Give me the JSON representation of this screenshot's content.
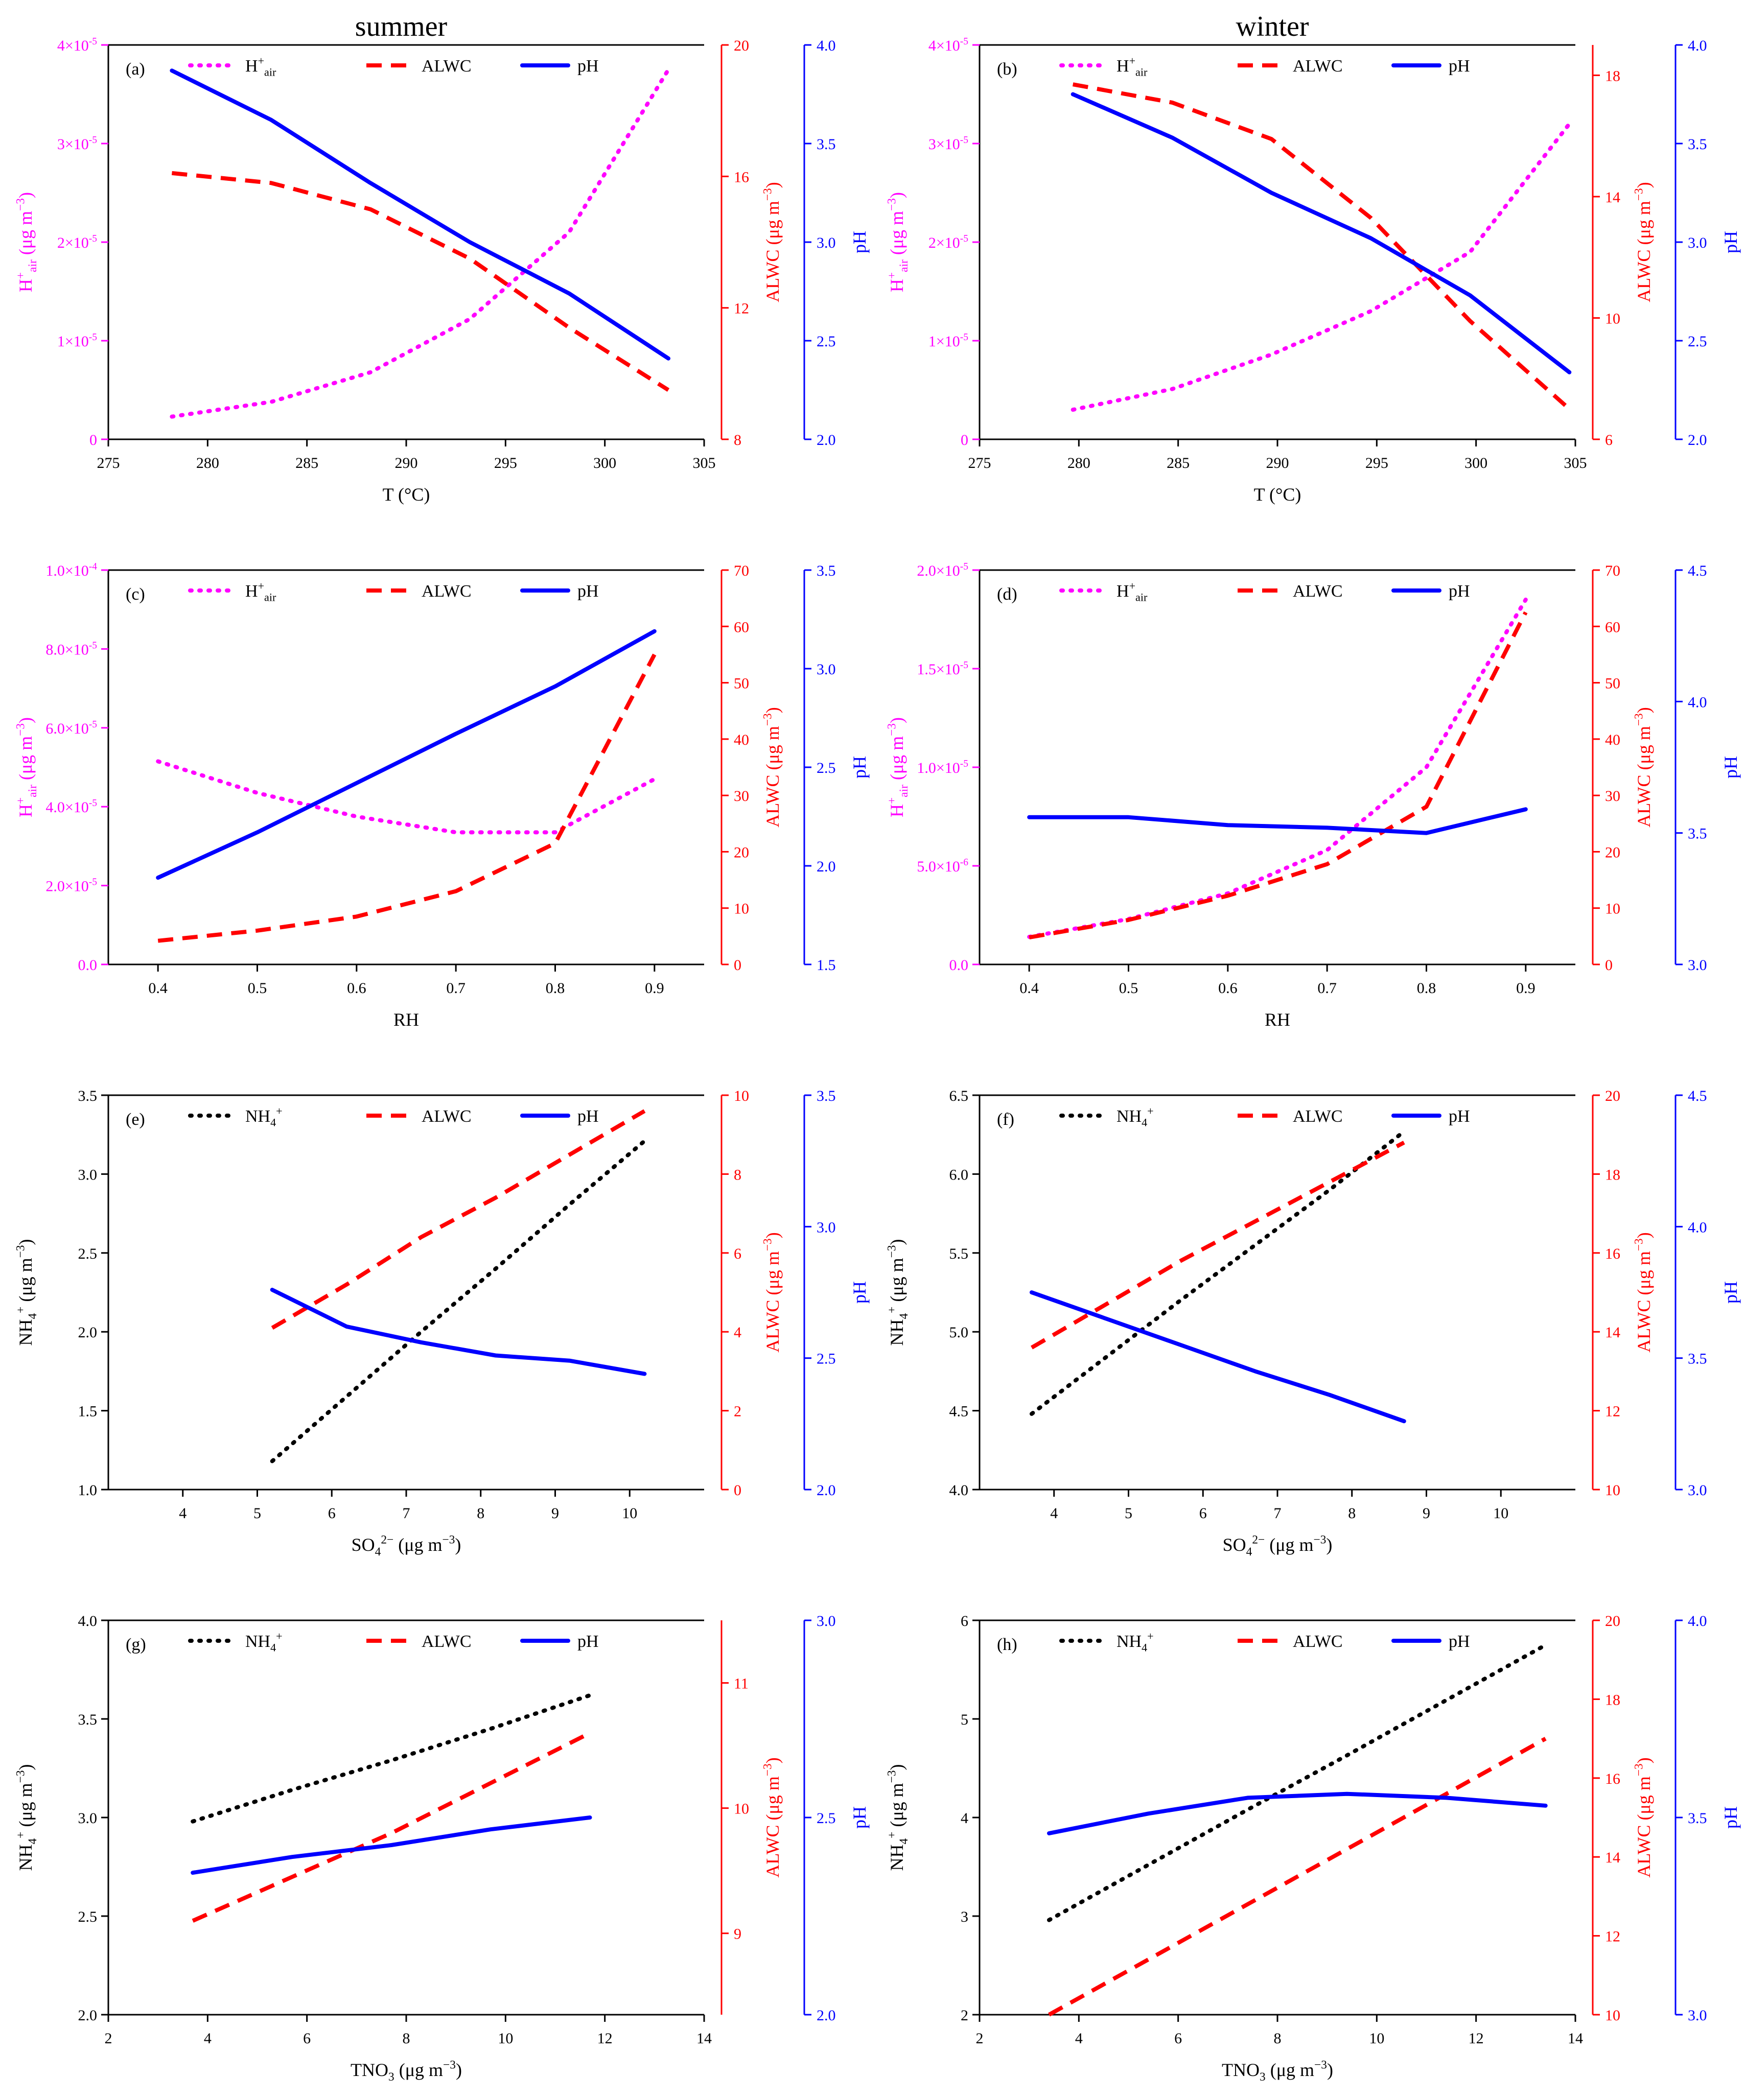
{
  "headers": {
    "left": "summer",
    "right": "winter"
  },
  "colors": {
    "h": "#ff00ff",
    "alwc": "#ff0000",
    "ph": "#0000ff",
    "nh4": "#000000",
    "axis": "#000000"
  },
  "chart_data": [
    {
      "type": "line",
      "panel_label": "(a)",
      "xlabel": "T (°C)",
      "xlim": [
        275,
        305
      ],
      "xticks": [
        275,
        280,
        285,
        290,
        295,
        300,
        305
      ],
      "left_axis": {
        "label": "H+air (μg m-3)",
        "lim": [
          0,
          4e-05
        ],
        "ticks": [
          "0",
          "1x10-5",
          "2x10-5",
          "3x10-5",
          "4x10-5"
        ]
      },
      "alwc_axis": {
        "label": "ALWC (μg m-3)",
        "lim": [
          8,
          20
        ],
        "ticks": [
          "8",
          "12",
          "16",
          "20"
        ]
      },
      "ph_axis": {
        "label": "pH",
        "lim": [
          2.0,
          4.0
        ],
        "ticks": [
          "2.0",
          "2.5",
          "3.0",
          "3.5",
          "4.0"
        ]
      },
      "legend": [
        "H+air",
        "ALWC",
        "pH"
      ],
      "series": [
        {
          "name": "H+air",
          "axis": "left",
          "style": "dotted",
          "x": [
            278.2,
            283.2,
            288.2,
            293.2,
            298.2,
            303.2
          ],
          "values": [
            2.3e-06,
            3.8e-06,
            6.8e-06,
            1.22e-05,
            2.1e-05,
            3.75e-05
          ]
        },
        {
          "name": "ALWC",
          "axis": "alwc",
          "style": "dashed",
          "x": [
            278.2,
            283.2,
            288.2,
            293.2,
            298.2,
            303.2
          ],
          "values": [
            16.1,
            15.8,
            15.0,
            13.5,
            11.4,
            9.5
          ]
        },
        {
          "name": "pH",
          "axis": "ph",
          "style": "solid",
          "x": [
            278.2,
            283.2,
            288.2,
            293.2,
            298.2,
            303.2
          ],
          "values": [
            3.87,
            3.62,
            3.3,
            3.0,
            2.74,
            2.41
          ]
        }
      ]
    },
    {
      "type": "line",
      "panel_label": "(b)",
      "xlabel": "T (°C)",
      "xlim": [
        275,
        305
      ],
      "xticks": [
        275,
        280,
        285,
        290,
        295,
        300,
        305
      ],
      "left_axis": {
        "label": "H+air (μg m-3)",
        "lim": [
          0,
          4e-05
        ],
        "ticks": [
          "0",
          "1x10-5",
          "2x10-5",
          "3x10-5",
          "4x10-5"
        ]
      },
      "alwc_axis": {
        "label": "ALWC (μg m-3)",
        "lim": [
          6,
          19
        ],
        "ticks": [
          "6",
          "10",
          "14",
          "18"
        ]
      },
      "ph_axis": {
        "label": "pH",
        "lim": [
          2.0,
          4.0
        ],
        "ticks": [
          "2.0",
          "2.5",
          "3.0",
          "3.5",
          "4.0"
        ]
      },
      "legend": [
        "H+air",
        "ALWC",
        "pH"
      ],
      "series": [
        {
          "name": "H+air",
          "axis": "left",
          "style": "dotted",
          "x": [
            279.7,
            284.7,
            289.7,
            294.7,
            299.7,
            304.7
          ],
          "values": [
            3e-06,
            5.1e-06,
            8.6e-06,
            1.3e-05,
            1.9e-05,
            3.2e-05
          ]
        },
        {
          "name": "ALWC",
          "axis": "alwc",
          "style": "dashed",
          "x": [
            279.7,
            284.7,
            289.7,
            294.7,
            299.7,
            304.7
          ],
          "values": [
            17.7,
            17.1,
            15.9,
            13.3,
            9.9,
            7.0
          ]
        },
        {
          "name": "pH",
          "axis": "ph",
          "style": "solid",
          "x": [
            279.7,
            284.7,
            289.7,
            294.7,
            299.7,
            304.7
          ],
          "values": [
            3.75,
            3.53,
            3.25,
            3.02,
            2.73,
            2.34
          ]
        }
      ]
    },
    {
      "type": "line",
      "panel_label": "(c)",
      "xlabel": "RH",
      "xlim": [
        0.35,
        0.95
      ],
      "xticks": [
        0.4,
        0.5,
        0.6,
        0.7,
        0.8,
        0.9
      ],
      "left_axis": {
        "label": "H+air (μg m-3)",
        "lim": [
          0,
          0.0001
        ],
        "ticks": [
          "0.0",
          "2.0x10-5",
          "4.0x10-5",
          "6.0x10-5",
          "8.0x10-5",
          "1.0x10-4"
        ]
      },
      "alwc_axis": {
        "label": "ALWC (μg m-3)",
        "lim": [
          0,
          70
        ],
        "ticks": [
          "0",
          "10",
          "20",
          "30",
          "40",
          "50",
          "60",
          "70"
        ]
      },
      "ph_axis": {
        "label": "pH",
        "lim": [
          1.5,
          3.5
        ],
        "ticks": [
          "1.5",
          "2.0",
          "2.5",
          "3.0",
          "3.5"
        ]
      },
      "legend": [
        "H+air",
        "ALWC",
        "pH"
      ],
      "series": [
        {
          "name": "H+air",
          "axis": "left",
          "style": "dotted",
          "x": [
            0.4,
            0.5,
            0.6,
            0.7,
            0.8,
            0.9
          ],
          "values": [
            5.15e-05,
            4.35e-05,
            3.75e-05,
            3.35e-05,
            3.35e-05,
            4.7e-05
          ]
        },
        {
          "name": "ALWC",
          "axis": "alwc",
          "style": "dashed",
          "x": [
            0.4,
            0.5,
            0.6,
            0.7,
            0.8,
            0.9
          ],
          "values": [
            4.2,
            6.0,
            8.5,
            13.0,
            21.5,
            55.0
          ]
        },
        {
          "name": "pH",
          "axis": "ph",
          "style": "solid",
          "x": [
            0.4,
            0.5,
            0.6,
            0.7,
            0.8,
            0.9
          ],
          "values": [
            1.94,
            2.17,
            2.42,
            2.67,
            2.91,
            3.19
          ]
        }
      ]
    },
    {
      "type": "line",
      "panel_label": "(d)",
      "xlabel": "RH",
      "xlim": [
        0.35,
        0.95
      ],
      "xticks": [
        0.4,
        0.5,
        0.6,
        0.7,
        0.8,
        0.9
      ],
      "left_axis": {
        "label": "H+air (μg m-3)",
        "lim": [
          0,
          2e-05
        ],
        "ticks": [
          "0.0",
          "5.0x10-6",
          "1.0x10-5",
          "1.5x10-5",
          "2.0x10-5"
        ]
      },
      "alwc_axis": {
        "label": "ALWC (μg m-3)",
        "lim": [
          0,
          70
        ],
        "ticks": [
          "0",
          "10",
          "20",
          "30",
          "40",
          "50",
          "60",
          "70"
        ]
      },
      "ph_axis": {
        "label": "pH",
        "lim": [
          3.0,
          4.5
        ],
        "ticks": [
          "3.0",
          "3.5",
          "4.0",
          "4.5"
        ]
      },
      "legend": [
        "H+air",
        "ALWC",
        "pH"
      ],
      "series": [
        {
          "name": "H+air",
          "axis": "left",
          "style": "dotted",
          "x": [
            0.4,
            0.5,
            0.6,
            0.7,
            0.8,
            0.9
          ],
          "values": [
            1.4e-06,
            2.3e-06,
            3.6e-06,
            5.8e-06,
            1e-05,
            1.85e-05
          ]
        },
        {
          "name": "ALWC",
          "axis": "alwc",
          "style": "dashed",
          "x": [
            0.4,
            0.5,
            0.6,
            0.7,
            0.8,
            0.9
          ],
          "values": [
            4.8,
            7.9,
            12.2,
            17.8,
            28.0,
            62.5
          ]
        },
        {
          "name": "pH",
          "axis": "ph",
          "style": "solid",
          "x": [
            0.4,
            0.5,
            0.6,
            0.7,
            0.8,
            0.9
          ],
          "values": [
            3.56,
            3.56,
            3.53,
            3.52,
            3.5,
            3.59
          ]
        }
      ]
    },
    {
      "type": "line",
      "panel_label": "(e)",
      "xlabel": "SO42- (μg m-3)",
      "xlim": [
        3,
        11
      ],
      "xticks": [
        4,
        5,
        6,
        7,
        8,
        9,
        10
      ],
      "left_axis": {
        "label": "NH4+ (μg m-3)",
        "lim": [
          1.0,
          3.5
        ],
        "ticks": [
          "1.0",
          "1.5",
          "2.0",
          "2.5",
          "3.0",
          "3.5"
        ]
      },
      "alwc_axis": {
        "label": "ALWC (μg m-3)",
        "lim": [
          0,
          10
        ],
        "ticks": [
          "0",
          "2",
          "4",
          "6",
          "8",
          "10"
        ]
      },
      "ph_axis": {
        "label": "pH",
        "lim": [
          2.0,
          3.5
        ],
        "ticks": [
          "2.0",
          "2.5",
          "3.0",
          "3.5"
        ]
      },
      "legend": [
        "NH4+",
        "ALWC",
        "pH"
      ],
      "series": [
        {
          "name": "NH4+",
          "axis": "left",
          "style": "dotted",
          "x": [
            5.2,
            6.2,
            7.2,
            8.2,
            9.2,
            10.2
          ],
          "values": [
            1.18,
            1.59,
            2.0,
            2.4,
            2.81,
            3.21
          ]
        },
        {
          "name": "ALWC",
          "axis": "alwc",
          "style": "dashed",
          "x": [
            5.2,
            6.2,
            7.2,
            8.2,
            9.2,
            10.2
          ],
          "values": [
            4.1,
            5.2,
            6.4,
            7.4,
            8.5,
            9.6
          ]
        },
        {
          "name": "pH",
          "axis": "ph",
          "style": "solid",
          "x": [
            5.2,
            6.2,
            7.2,
            8.2,
            9.2,
            10.2
          ],
          "values": [
            2.76,
            2.62,
            2.56,
            2.51,
            2.49,
            2.44
          ]
        }
      ]
    },
    {
      "type": "line",
      "panel_label": "(f)",
      "xlabel": "SO42- (μg m-3)",
      "xlim": [
        3,
        11
      ],
      "xticks": [
        4,
        5,
        6,
        7,
        8,
        9,
        10
      ],
      "left_axis": {
        "label": "NH4+ (μg m-3)",
        "lim": [
          4.0,
          6.5
        ],
        "ticks": [
          "4.0",
          "4.5",
          "5.0",
          "5.5",
          "6.0",
          "6.5"
        ]
      },
      "alwc_axis": {
        "label": "ALWC (μg m-3)",
        "lim": [
          10,
          20
        ],
        "ticks": [
          "10",
          "12",
          "14",
          "16",
          "18",
          "20"
        ]
      },
      "ph_axis": {
        "label": "pH",
        "lim": [
          3.0,
          4.5
        ],
        "ticks": [
          "3.0",
          "3.5",
          "4.0",
          "4.5"
        ]
      },
      "legend": [
        "NH4+",
        "ALWC",
        "pH"
      ],
      "series": [
        {
          "name": "NH4+",
          "axis": "left",
          "style": "dotted",
          "x": [
            3.7,
            4.7,
            5.7,
            6.7,
            7.7,
            8.7
          ],
          "values": [
            4.48,
            4.84,
            5.2,
            5.55,
            5.9,
            6.27
          ]
        },
        {
          "name": "ALWC",
          "axis": "alwc",
          "style": "dashed",
          "x": [
            3.7,
            4.7,
            5.7,
            6.7,
            7.7,
            8.7
          ],
          "values": [
            13.6,
            14.7,
            15.8,
            16.8,
            17.8,
            18.8
          ]
        },
        {
          "name": "pH",
          "axis": "ph",
          "style": "solid",
          "x": [
            3.7,
            4.7,
            5.7,
            6.7,
            7.7,
            8.7
          ],
          "values": [
            3.75,
            3.65,
            3.55,
            3.45,
            3.36,
            3.26
          ]
        }
      ]
    },
    {
      "type": "line",
      "panel_label": "(g)",
      "xlabel": "TNO3 (μg m-3)",
      "xlim": [
        2,
        14
      ],
      "xticks": [
        2,
        4,
        6,
        8,
        10,
        12,
        14
      ],
      "left_axis": {
        "label": "NH4+ (μg m-3)",
        "lim": [
          2.0,
          4.0
        ],
        "ticks": [
          "2.0",
          "2.5",
          "3.0",
          "3.5",
          "4.0"
        ]
      },
      "alwc_axis": {
        "label": "ALWC (μg m-3)",
        "lim": [
          8.35,
          11.5
        ],
        "ticks": [
          "9",
          "10",
          "11"
        ]
      },
      "ph_axis": {
        "label": "pH",
        "lim": [
          2.0,
          3.0
        ],
        "ticks": [
          "2.0",
          "2.5",
          "3.0"
        ]
      },
      "legend": [
        "NH4+",
        "ALWC",
        "pH"
      ],
      "series": [
        {
          "name": "NH4+",
          "axis": "left",
          "style": "dotted",
          "x": [
            3.7,
            5.7,
            7.7,
            9.7,
            11.7
          ],
          "values": [
            2.98,
            3.14,
            3.29,
            3.45,
            3.62
          ]
        },
        {
          "name": "ALWC",
          "axis": "alwc",
          "style": "dashed",
          "x": [
            3.7,
            5.7,
            7.7,
            9.7,
            11.7
          ],
          "values": [
            9.1,
            9.45,
            9.8,
            10.2,
            10.6
          ]
        },
        {
          "name": "pH",
          "axis": "ph",
          "style": "solid",
          "x": [
            3.7,
            5.7,
            7.7,
            9.7,
            11.7
          ],
          "values": [
            2.36,
            2.4,
            2.43,
            2.47,
            2.5
          ]
        }
      ]
    },
    {
      "type": "line",
      "panel_label": "(h)",
      "xlabel": "TNO3 (μg m-3)",
      "xlim": [
        2,
        14
      ],
      "xticks": [
        2,
        4,
        6,
        8,
        10,
        12,
        14
      ],
      "left_axis": {
        "label": "NH4+ (μg m-3)",
        "lim": [
          2,
          6
        ],
        "ticks": [
          "2",
          "3",
          "4",
          "5",
          "6"
        ]
      },
      "alwc_axis": {
        "label": "ALWC (μg m-3)",
        "lim": [
          10,
          20
        ],
        "ticks": [
          "10",
          "12",
          "14",
          "16",
          "18",
          "20"
        ]
      },
      "ph_axis": {
        "label": "pH",
        "lim": [
          3.0,
          4.0
        ],
        "ticks": [
          "3.0",
          "3.5",
          "4.0"
        ]
      },
      "legend": [
        "NH4+",
        "ALWC",
        "pH"
      ],
      "series": [
        {
          "name": "NH4+",
          "axis": "left",
          "style": "dotted",
          "x": [
            3.4,
            5.4,
            7.4,
            9.4,
            11.4,
            13.4
          ],
          "values": [
            2.96,
            3.52,
            4.08,
            4.63,
            5.19,
            5.75
          ]
        },
        {
          "name": "ALWC",
          "axis": "alwc",
          "style": "dashed",
          "x": [
            3.4,
            5.4,
            7.4,
            9.4,
            11.4,
            13.4
          ],
          "values": [
            10.0,
            11.4,
            12.8,
            14.2,
            15.6,
            17.0
          ]
        },
        {
          "name": "pH",
          "axis": "ph",
          "style": "solid",
          "x": [
            3.4,
            5.4,
            7.4,
            9.4,
            11.4,
            13.4
          ],
          "values": [
            3.46,
            3.51,
            3.55,
            3.56,
            3.55,
            3.53
          ]
        }
      ]
    }
  ]
}
